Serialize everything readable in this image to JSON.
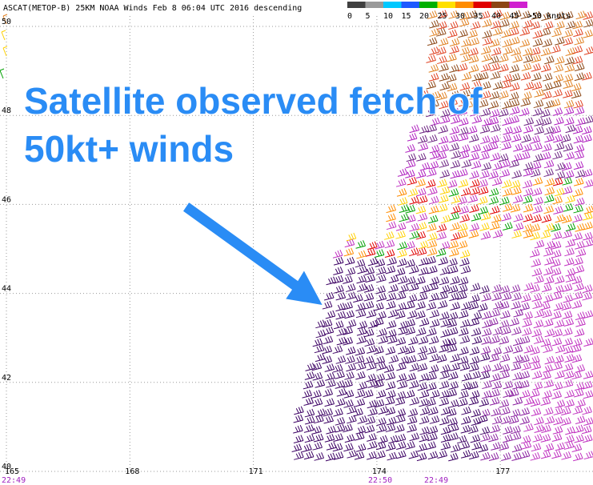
{
  "header": {
    "title": "ASCAT(METOP-B) 25KM NOAA Winds  Feb  8 06:04 UTC 2016 descending"
  },
  "legend": {
    "labels": [
      "0",
      "5",
      "10",
      "15",
      "20",
      "25",
      "30",
      "35",
      "40",
      "45",
      ">50 knots"
    ],
    "colors": [
      "#404040",
      "#9a9a9a",
      "#00c8ff",
      "#1e5aff",
      "#00b000",
      "#ffe000",
      "#ff8c00",
      "#e00000",
      "#8b4513",
      "#d020d0",
      "#3c0064"
    ]
  },
  "map": {
    "lat_labels": [
      "50",
      "48",
      "46",
      "44",
      "42",
      "40"
    ],
    "lon_labels": [
      "165",
      "168",
      "171",
      "174",
      "177"
    ],
    "time_labels": [
      "22:49",
      "22:50",
      "22:49"
    ]
  },
  "annotation": {
    "lines": [
      "Satellite observed fetch of",
      "50kt+ winds"
    ]
  }
}
